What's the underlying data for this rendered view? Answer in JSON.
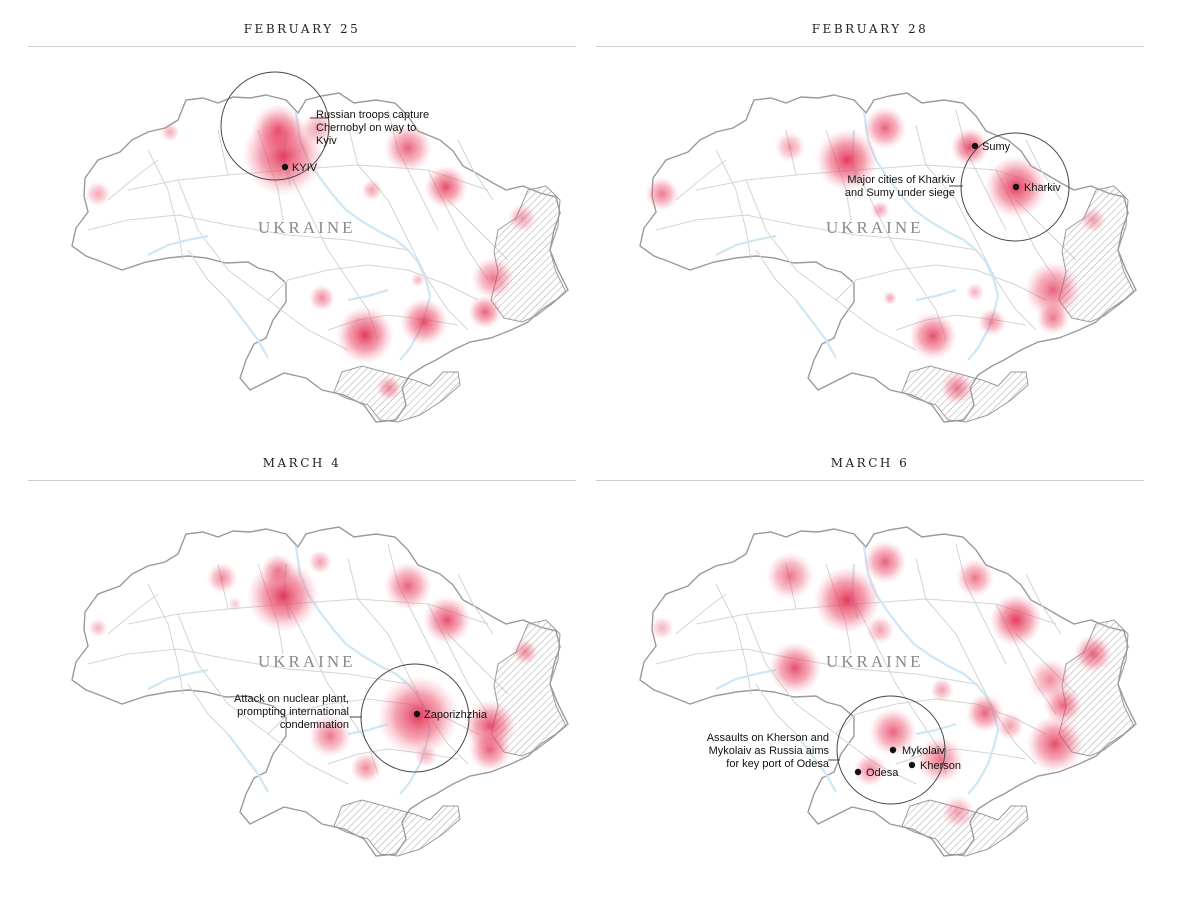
{
  "panels": [
    {
      "title": "FEBRUARY 25",
      "country": "UKRAINE",
      "annotation": [
        "Russian troops capture",
        "Chernobyl on way to",
        "Kyiv"
      ],
      "cities": [
        {
          "name": "KYIV"
        }
      ]
    },
    {
      "title": "FEBRUARY 28",
      "country": "UKRAINE",
      "annotation": [
        "Major cities of Kharkiv",
        "and Sumy under siege"
      ],
      "cities": [
        {
          "name": "Sumy"
        },
        {
          "name": "Kharkiv"
        }
      ]
    },
    {
      "title": "MARCH 4",
      "country": "UKRAINE",
      "annotation": [
        "Attack on nuclear plant,",
        "prompting international",
        "condemnation"
      ],
      "cities": [
        {
          "name": "Zaporizhzhia"
        }
      ]
    },
    {
      "title": "MARCH 6",
      "country": "UKRAINE",
      "annotation": [
        "Assaults on Kherson and",
        "Mykolaiv as Russia aims",
        "for key port of Odesa"
      ],
      "cities": [
        {
          "name": "Mykolaiv"
        },
        {
          "name": "Odesa"
        },
        {
          "name": "Kherson"
        }
      ]
    }
  ],
  "colors": {
    "hotspot": "#e8405f",
    "outline": "#9a9a9a",
    "river": "#cfe6f5",
    "road": "#d4d4d4",
    "occupied_hatch": "#9a9a9a"
  }
}
